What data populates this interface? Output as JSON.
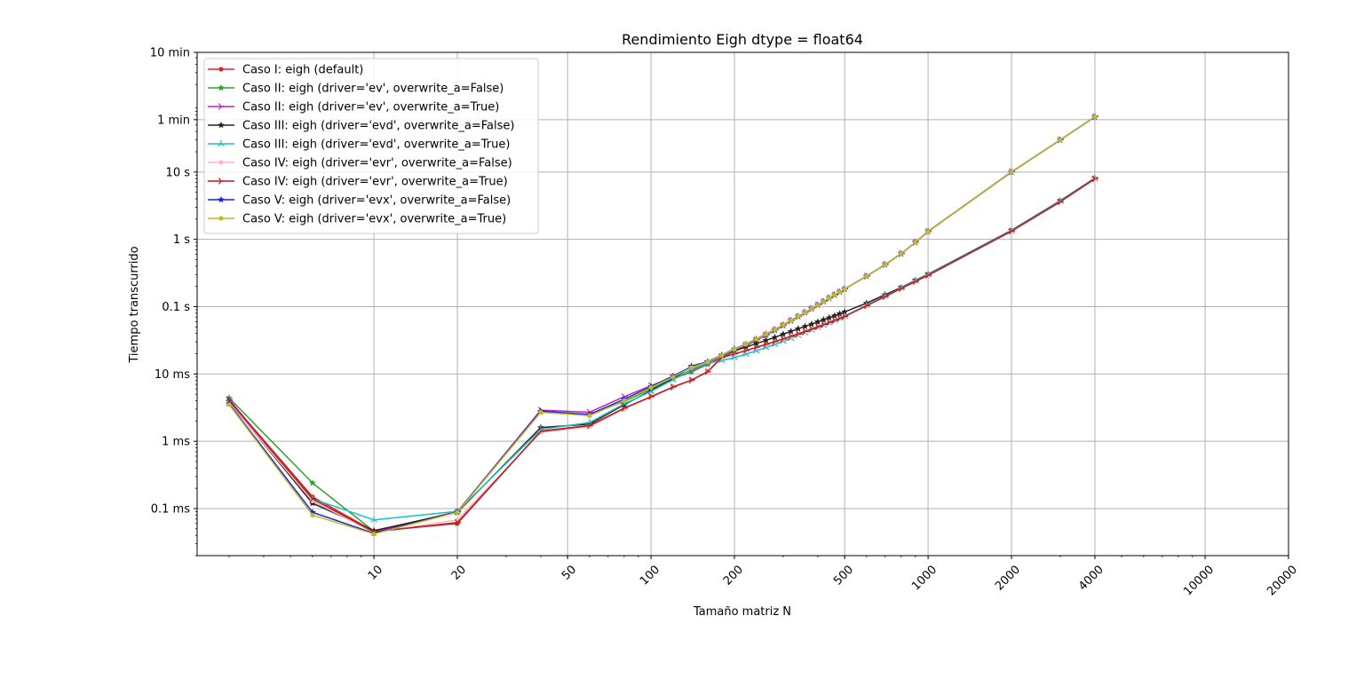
{
  "chart_data": {
    "type": "line",
    "title": "Rendimiento Eigh dtype = float64",
    "xlabel": "Tamaño matriz N",
    "ylabel": "Tiempo transcurrido",
    "x_scale": "log",
    "y_scale": "log",
    "xlim": [
      2.3,
      20000
    ],
    "ylim": [
      2e-05,
      600
    ],
    "grid": true,
    "legend_position": "top-left",
    "x_ticks": [
      {
        "value": 10,
        "label": "10"
      },
      {
        "value": 20,
        "label": "20"
      },
      {
        "value": 50,
        "label": "50"
      },
      {
        "value": 100,
        "label": "100"
      },
      {
        "value": 200,
        "label": "200"
      },
      {
        "value": 500,
        "label": "500"
      },
      {
        "value": 1000,
        "label": "1000"
      },
      {
        "value": 2000,
        "label": "2000"
      },
      {
        "value": 4000,
        "label": "4000"
      },
      {
        "value": 10000,
        "label": "10000"
      },
      {
        "value": 20000,
        "label": "20000"
      }
    ],
    "y_ticks": [
      {
        "value": 0.0001,
        "label": "0.1 ms"
      },
      {
        "value": 0.001,
        "label": "1 ms"
      },
      {
        "value": 0.01,
        "label": "10 ms"
      },
      {
        "value": 0.1,
        "label": "0.1 s"
      },
      {
        "value": 1,
        "label": "1 s"
      },
      {
        "value": 10,
        "label": "10 s"
      },
      {
        "value": 60,
        "label": "1 min"
      },
      {
        "value": 600,
        "label": "10 min"
      }
    ],
    "x": [
      3,
      6,
      10,
      20,
      40,
      60,
      80,
      100,
      120,
      140,
      160,
      180,
      200,
      220,
      240,
      260,
      280,
      300,
      320,
      340,
      360,
      380,
      400,
      420,
      440,
      460,
      480,
      500,
      600,
      700,
      800,
      900,
      1000,
      2000,
      3000,
      4000
    ],
    "series": [
      {
        "name": "Caso I: eigh (default)",
        "color": "#d62728",
        "marker": "dot",
        "values": [
          0.0041,
          0.00015,
          4.6e-05,
          6e-05,
          0.00142,
          0.00172,
          0.0031,
          0.0046,
          0.0064,
          0.0081,
          0.0108,
          0.0175,
          0.0198,
          0.0222,
          0.0248,
          0.0275,
          0.0302,
          0.0332,
          0.0362,
          0.0395,
          0.0428,
          0.0465,
          0.0502,
          0.0542,
          0.0582,
          0.0625,
          0.067,
          0.0715,
          0.103,
          0.141,
          0.186,
          0.236,
          0.292,
          1.32,
          3.6,
          7.9
        ]
      },
      {
        "name": "Caso II: eigh (driver='ev', overwrite_a=False)",
        "color": "#2ca02c",
        "marker": "star",
        "values": [
          0.0044,
          0.00024,
          4.6e-05,
          9e-05,
          0.0027,
          0.0025,
          0.0039,
          0.006,
          0.0085,
          0.0107,
          0.0139,
          0.0175,
          0.0218,
          0.0262,
          0.0316,
          0.0375,
          0.0443,
          0.0522,
          0.0615,
          0.071,
          0.0815,
          0.093,
          0.106,
          0.119,
          0.134,
          0.149,
          0.165,
          0.182,
          0.283,
          0.42,
          0.61,
          0.9,
          1.3,
          10.0,
          30.0,
          66.0
        ]
      },
      {
        "name": "Caso II: eigh (driver='ev', overwrite_a=True)",
        "color": "#c020c0",
        "marker": "tri_right",
        "values": [
          0.0042,
          0.00013,
          4.5e-05,
          9e-05,
          0.0029,
          0.0027,
          0.0046,
          0.0067,
          0.0089,
          0.0114,
          0.0144,
          0.018,
          0.0223,
          0.0267,
          0.032,
          0.038,
          0.0448,
          0.0527,
          0.062,
          0.0715,
          0.082,
          0.0935,
          0.1065,
          0.1195,
          0.1345,
          0.1495,
          0.1655,
          0.1825,
          0.284,
          0.422,
          0.612,
          0.902,
          1.31,
          10.1,
          30.2,
          66.5
        ]
      },
      {
        "name": "Caso III: eigh (driver='evd', overwrite_a=False)",
        "color": "#222222",
        "marker": "star",
        "values": [
          0.0039,
          0.00012,
          4.7e-05,
          8.8e-05,
          0.0016,
          0.0018,
          0.0035,
          0.0057,
          0.0085,
          0.0131,
          0.0152,
          0.019,
          0.0221,
          0.025,
          0.0283,
          0.0316,
          0.035,
          0.039,
          0.043,
          0.047,
          0.051,
          0.055,
          0.0596,
          0.064,
          0.0686,
          0.0734,
          0.0784,
          0.0836,
          0.113,
          0.151,
          0.193,
          0.246,
          0.304,
          1.36,
          3.75,
          8.1
        ]
      },
      {
        "name": "Caso III: eigh (driver='evd', overwrite_a=True)",
        "color": "#17becf",
        "marker": "tri_up",
        "values": [
          0.0037,
          0.00014,
          6.8e-05,
          9.1e-05,
          0.0015,
          0.0019,
          0.0036,
          0.0055,
          0.0082,
          0.0118,
          0.0145,
          0.0158,
          0.0175,
          0.0197,
          0.0221,
          0.0247,
          0.0275,
          0.0306,
          0.0338,
          0.0373,
          0.0409,
          0.0448,
          0.0489,
          0.0532,
          0.0577,
          0.0624,
          0.0673,
          0.0724,
          0.1055,
          0.1445,
          0.19,
          0.241,
          0.299,
          1.34,
          3.7,
          8.0
        ]
      },
      {
        "name": "Caso IV: eigh (driver='evr', overwrite_a=False)",
        "color": "#ffb6c1",
        "marker": "dot",
        "values": [
          0.0038,
          0.00013,
          4.4e-05,
          6.8e-05,
          0.00136,
          0.00165,
          0.003,
          0.0045,
          0.0063,
          0.008,
          0.0106,
          0.0172,
          0.0195,
          0.022,
          0.0245,
          0.0272,
          0.0299,
          0.0329,
          0.0359,
          0.0392,
          0.0425,
          0.0462,
          0.0499,
          0.0539,
          0.0579,
          0.0622,
          0.0667,
          0.0712,
          0.102,
          0.14,
          0.185,
          0.235,
          0.29,
          1.31,
          3.58,
          7.85
        ]
      },
      {
        "name": "Caso IV: eigh (driver='evr', overwrite_a=True)",
        "color": "#b22222",
        "marker": "tri_right",
        "values": [
          0.004,
          0.00014,
          4.5e-05,
          6.2e-05,
          0.0014,
          0.0017,
          0.0031,
          0.0046,
          0.0064,
          0.0081,
          0.0108,
          0.0176,
          0.0199,
          0.0223,
          0.0249,
          0.0276,
          0.0303,
          0.0333,
          0.0363,
          0.0396,
          0.0429,
          0.0466,
          0.0503,
          0.0543,
          0.0583,
          0.0626,
          0.0671,
          0.0716,
          0.1035,
          0.1415,
          0.1865,
          0.2365,
          0.2925,
          1.325,
          3.62,
          7.95
        ]
      },
      {
        "name": "Caso V: eigh (driver='evx', overwrite_a=False)",
        "color": "#1f1fdd",
        "marker": "star",
        "values": [
          0.0036,
          8.8e-05,
          4.3e-05,
          8.9e-05,
          0.0028,
          0.0025,
          0.0042,
          0.0065,
          0.0093,
          0.0128,
          0.0152,
          0.019,
          0.0235,
          0.0278,
          0.0331,
          0.0392,
          0.0459,
          0.0537,
          0.0628,
          0.0722,
          0.0825,
          0.0938,
          0.1065,
          0.1195,
          0.1345,
          0.1495,
          0.1655,
          0.1825,
          0.285,
          0.423,
          0.614,
          0.905,
          1.31,
          9.95,
          30.0,
          66.0
        ]
      },
      {
        "name": "Caso V: eigh (driver='evx', overwrite_a=True)",
        "color": "#bcbd22",
        "marker": "dot",
        "values": [
          0.0035,
          8e-05,
          4.2e-05,
          8.8e-05,
          0.0027,
          0.0024,
          0.004,
          0.0063,
          0.009,
          0.0125,
          0.015,
          0.0188,
          0.0232,
          0.0275,
          0.0328,
          0.0389,
          0.0456,
          0.0534,
          0.0625,
          0.0719,
          0.0822,
          0.0935,
          0.106,
          0.119,
          0.134,
          0.149,
          0.165,
          0.182,
          0.284,
          0.421,
          0.612,
          0.902,
          1.3,
          10.0,
          30.1,
          66.2
        ]
      }
    ]
  }
}
